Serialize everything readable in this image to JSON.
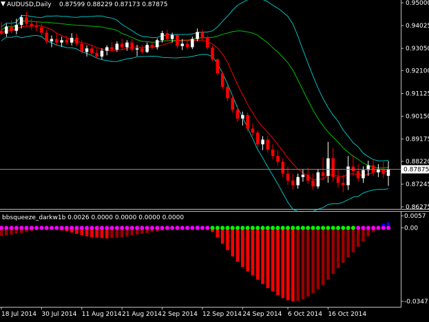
{
  "main_panel": {
    "symbol": "AUDUSD,Daily",
    "ohlc": "0.87599 0.88229 0.87173 0.87875",
    "current_price_label": "0.87875",
    "y_ticks": [
      "0.95000",
      "0.94025",
      "0.93050",
      "0.92100",
      "0.91125",
      "0.90150",
      "0.89175",
      "0.88220",
      "0.87245",
      "0.86275"
    ],
    "y_tick_values": [
      0.95,
      0.94025,
      0.9305,
      0.921,
      0.91125,
      0.9015,
      0.89175,
      0.8822,
      0.87245,
      0.86275
    ]
  },
  "indicator_panel": {
    "label": "bbsqueeze_darkw1b 0.0026 0.0000 0.0000 0.0000 0.0000",
    "y_ticks": [
      "0.0057",
      "0.00",
      "-0.0347"
    ],
    "y_tick_values": [
      0.0057,
      0.0,
      -0.0347
    ]
  },
  "x_axis": {
    "labels": [
      "18 Jul 2014",
      "30 Jul 2014",
      "11 Aug 2014",
      "21 Aug 2014",
      "2 Sep 2014",
      "12 Sep 2014",
      "24 Sep 2014",
      "6 Oct 2014",
      "16 Oct 2014"
    ]
  },
  "colors": {
    "background": "#000000",
    "bull_candle": "#ffffff",
    "bear_candle": "#ff0000",
    "upper_band": "#00c0c0",
    "mid_band": "#00c000",
    "keltner": "#ff0000",
    "dot_on": "#ff00ff",
    "dot_off": "#00ff00",
    "hist_bright": "#ff0000",
    "hist_dark": "#990000",
    "hist_positive": "#0000ff"
  },
  "chart_data": [
    {
      "type": "candlestick",
      "title": "AUDUSD,Daily",
      "ylim": [
        0.86275,
        0.95
      ],
      "candles": [
        {
          "o": 0.938,
          "h": 0.9418,
          "l": 0.9362,
          "c": 0.9368
        },
        {
          "o": 0.9368,
          "h": 0.941,
          "l": 0.9355,
          "c": 0.9398
        },
        {
          "o": 0.9398,
          "h": 0.9425,
          "l": 0.937,
          "c": 0.938
        },
        {
          "o": 0.938,
          "h": 0.9432,
          "l": 0.9365,
          "c": 0.9405
        },
        {
          "o": 0.9405,
          "h": 0.9448,
          "l": 0.939,
          "c": 0.9438
        },
        {
          "o": 0.9438,
          "h": 0.946,
          "l": 0.94,
          "c": 0.941
        },
        {
          "o": 0.941,
          "h": 0.9432,
          "l": 0.9385,
          "c": 0.94
        },
        {
          "o": 0.94,
          "h": 0.9422,
          "l": 0.9378,
          "c": 0.9395
        },
        {
          "o": 0.9395,
          "h": 0.941,
          "l": 0.936,
          "c": 0.9372
        },
        {
          "o": 0.9372,
          "h": 0.9385,
          "l": 0.9325,
          "c": 0.9335
        },
        {
          "o": 0.9335,
          "h": 0.936,
          "l": 0.931,
          "c": 0.9345
        },
        {
          "o": 0.9345,
          "h": 0.9368,
          "l": 0.932,
          "c": 0.933
        },
        {
          "o": 0.933,
          "h": 0.9355,
          "l": 0.9312,
          "c": 0.934
        },
        {
          "o": 0.934,
          "h": 0.936,
          "l": 0.9322,
          "c": 0.933
        },
        {
          "o": 0.933,
          "h": 0.937,
          "l": 0.9318,
          "c": 0.935
        },
        {
          "o": 0.935,
          "h": 0.9368,
          "l": 0.9315,
          "c": 0.9325
        },
        {
          "o": 0.9325,
          "h": 0.934,
          "l": 0.9282,
          "c": 0.929
        },
        {
          "o": 0.929,
          "h": 0.9318,
          "l": 0.927,
          "c": 0.9305
        },
        {
          "o": 0.9305,
          "h": 0.932,
          "l": 0.9272,
          "c": 0.9285
        },
        {
          "o": 0.9285,
          "h": 0.9305,
          "l": 0.9262,
          "c": 0.927
        },
        {
          "o": 0.927,
          "h": 0.9305,
          "l": 0.9258,
          "c": 0.9295
        },
        {
          "o": 0.9295,
          "h": 0.9318,
          "l": 0.9275,
          "c": 0.931
        },
        {
          "o": 0.931,
          "h": 0.933,
          "l": 0.929,
          "c": 0.93
        },
        {
          "o": 0.93,
          "h": 0.9335,
          "l": 0.929,
          "c": 0.9325
        },
        {
          "o": 0.9325,
          "h": 0.9345,
          "l": 0.93,
          "c": 0.931
        },
        {
          "o": 0.931,
          "h": 0.934,
          "l": 0.9295,
          "c": 0.933
        },
        {
          "o": 0.933,
          "h": 0.9345,
          "l": 0.929,
          "c": 0.93
        },
        {
          "o": 0.93,
          "h": 0.932,
          "l": 0.9272,
          "c": 0.9305
        },
        {
          "o": 0.9305,
          "h": 0.932,
          "l": 0.928,
          "c": 0.929
        },
        {
          "o": 0.929,
          "h": 0.933,
          "l": 0.9285,
          "c": 0.932
        },
        {
          "o": 0.932,
          "h": 0.9335,
          "l": 0.93,
          "c": 0.931
        },
        {
          "o": 0.931,
          "h": 0.9348,
          "l": 0.93,
          "c": 0.934
        },
        {
          "o": 0.934,
          "h": 0.938,
          "l": 0.933,
          "c": 0.937
        },
        {
          "o": 0.937,
          "h": 0.9385,
          "l": 0.9335,
          "c": 0.9345
        },
        {
          "o": 0.9345,
          "h": 0.9372,
          "l": 0.933,
          "c": 0.9362
        },
        {
          "o": 0.9362,
          "h": 0.937,
          "l": 0.9305,
          "c": 0.9315
        },
        {
          "o": 0.9315,
          "h": 0.9345,
          "l": 0.9298,
          "c": 0.9325
        },
        {
          "o": 0.9325,
          "h": 0.934,
          "l": 0.93,
          "c": 0.931
        },
        {
          "o": 0.931,
          "h": 0.9355,
          "l": 0.9302,
          "c": 0.9345
        },
        {
          "o": 0.9345,
          "h": 0.939,
          "l": 0.9335,
          "c": 0.9375
        },
        {
          "o": 0.9375,
          "h": 0.9385,
          "l": 0.934,
          "c": 0.935
        },
        {
          "o": 0.935,
          "h": 0.936,
          "l": 0.93,
          "c": 0.9308
        },
        {
          "o": 0.9308,
          "h": 0.9315,
          "l": 0.925,
          "c": 0.9258
        },
        {
          "o": 0.9258,
          "h": 0.9262,
          "l": 0.919,
          "c": 0.9198
        },
        {
          "o": 0.9198,
          "h": 0.9205,
          "l": 0.913,
          "c": 0.914
        },
        {
          "o": 0.914,
          "h": 0.915,
          "l": 0.908,
          "c": 0.9092
        },
        {
          "o": 0.9092,
          "h": 0.9105,
          "l": 0.903,
          "c": 0.9042
        },
        {
          "o": 0.9042,
          "h": 0.906,
          "l": 0.899,
          "c": 0.9005
        },
        {
          "o": 0.9005,
          "h": 0.9035,
          "l": 0.8975,
          "c": 0.902
        },
        {
          "o": 0.902,
          "h": 0.903,
          "l": 0.895,
          "c": 0.8962
        },
        {
          "o": 0.8962,
          "h": 0.8985,
          "l": 0.893,
          "c": 0.8945
        },
        {
          "o": 0.8945,
          "h": 0.8955,
          "l": 0.888,
          "c": 0.8895
        },
        {
          "o": 0.8895,
          "h": 0.893,
          "l": 0.887,
          "c": 0.8915
        },
        {
          "o": 0.8915,
          "h": 0.893,
          "l": 0.886,
          "c": 0.8872
        },
        {
          "o": 0.8872,
          "h": 0.8895,
          "l": 0.883,
          "c": 0.8845
        },
        {
          "o": 0.8845,
          "h": 0.887,
          "l": 0.8805,
          "c": 0.882
        },
        {
          "o": 0.882,
          "h": 0.8835,
          "l": 0.8755,
          "c": 0.877
        },
        {
          "o": 0.877,
          "h": 0.88,
          "l": 0.872,
          "c": 0.874
        },
        {
          "o": 0.874,
          "h": 0.877,
          "l": 0.87,
          "c": 0.872
        },
        {
          "o": 0.872,
          "h": 0.877,
          "l": 0.8705,
          "c": 0.8755
        },
        {
          "o": 0.8755,
          "h": 0.879,
          "l": 0.8735,
          "c": 0.8765
        },
        {
          "o": 0.8765,
          "h": 0.8795,
          "l": 0.8725,
          "c": 0.874
        },
        {
          "o": 0.874,
          "h": 0.877,
          "l": 0.87,
          "c": 0.8715
        },
        {
          "o": 0.8715,
          "h": 0.879,
          "l": 0.8705,
          "c": 0.8775
        },
        {
          "o": 0.8775,
          "h": 0.884,
          "l": 0.874,
          "c": 0.876
        },
        {
          "o": 0.876,
          "h": 0.8905,
          "l": 0.873,
          "c": 0.8835
        },
        {
          "o": 0.8835,
          "h": 0.888,
          "l": 0.8735,
          "c": 0.8755
        },
        {
          "o": 0.8755,
          "h": 0.879,
          "l": 0.871,
          "c": 0.873
        },
        {
          "o": 0.873,
          "h": 0.8765,
          "l": 0.869,
          "c": 0.872
        },
        {
          "o": 0.872,
          "h": 0.8845,
          "l": 0.87,
          "c": 0.88
        },
        {
          "o": 0.88,
          "h": 0.885,
          "l": 0.876,
          "c": 0.878
        },
        {
          "o": 0.878,
          "h": 0.881,
          "l": 0.8735,
          "c": 0.875
        },
        {
          "o": 0.875,
          "h": 0.88,
          "l": 0.873,
          "c": 0.8785
        },
        {
          "o": 0.8785,
          "h": 0.8825,
          "l": 0.876,
          "c": 0.8805
        },
        {
          "o": 0.8805,
          "h": 0.883,
          "l": 0.876,
          "c": 0.8775
        },
        {
          "o": 0.8775,
          "h": 0.881,
          "l": 0.8755,
          "c": 0.879
        },
        {
          "o": 0.879,
          "h": 0.882,
          "l": 0.875,
          "c": 0.8768
        },
        {
          "o": 0.876,
          "h": 0.8823,
          "l": 0.8717,
          "c": 0.8788
        }
      ]
    },
    {
      "type": "bar",
      "title": "bbsqueeze_darkw1b",
      "ylim": [
        -0.0347,
        0.0057
      ],
      "values": [
        -0.0038,
        -0.0035,
        -0.0032,
        -0.0028,
        -0.0024,
        -0.002,
        -0.0014,
        -0.0008,
        -0.0004,
        -0.0002,
        -0.0004,
        -0.0008,
        -0.0012,
        -0.0016,
        -0.0022,
        -0.0028,
        -0.0034,
        -0.004,
        -0.0044,
        -0.0046,
        -0.0048,
        -0.005,
        -0.0048,
        -0.0046,
        -0.0044,
        -0.004,
        -0.0036,
        -0.0032,
        -0.0028,
        -0.0024,
        -0.002,
        -0.0016,
        -0.0012,
        -0.0008,
        -0.0004,
        -0.0001,
        0.0004,
        0.0008,
        0.001,
        0.0012,
        0.0008,
        0.0004,
        -0.002,
        -0.0045,
        -0.0075,
        -0.0105,
        -0.0135,
        -0.016,
        -0.0185,
        -0.0205,
        -0.0225,
        -0.0245,
        -0.0265,
        -0.0285,
        -0.03,
        -0.0318,
        -0.0332,
        -0.0342,
        -0.0347,
        -0.0345,
        -0.0338,
        -0.0325,
        -0.031,
        -0.029,
        -0.027,
        -0.0245,
        -0.0218,
        -0.019,
        -0.0165,
        -0.014,
        -0.0115,
        -0.009,
        -0.0065,
        -0.004,
        -0.002,
        0.001,
        0.002,
        0.0026
      ],
      "dots": [
        "on",
        "on",
        "on",
        "on",
        "on",
        "on",
        "on",
        "on",
        "on",
        "on",
        "on",
        "on",
        "on",
        "on",
        "on",
        "on",
        "on",
        "on",
        "on",
        "on",
        "on",
        "on",
        "on",
        "on",
        "on",
        "on",
        "on",
        "on",
        "on",
        "on",
        "on",
        "on",
        "on",
        "on",
        "on",
        "on",
        "on",
        "on",
        "on",
        "on",
        "on",
        "on",
        "off",
        "off",
        "off",
        "off",
        "off",
        "off",
        "off",
        "off",
        "off",
        "off",
        "off",
        "off",
        "off",
        "off",
        "off",
        "off",
        "off",
        "off",
        "off",
        "off",
        "off",
        "off",
        "off",
        "off",
        "off",
        "off",
        "off",
        "off",
        "off",
        "on",
        "on",
        "on",
        "on",
        "on",
        "on",
        "on"
      ]
    }
  ]
}
